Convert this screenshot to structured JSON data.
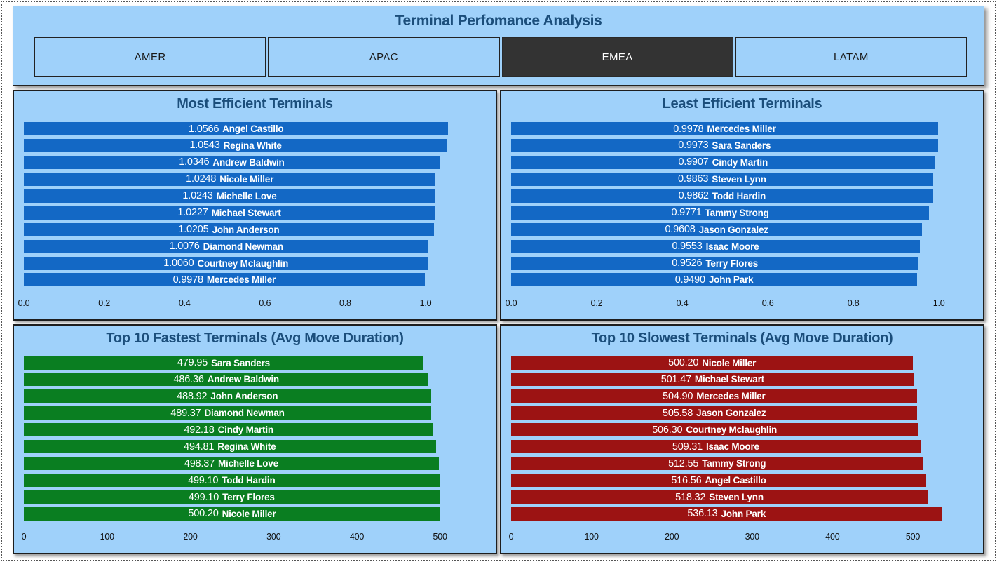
{
  "header": {
    "title": "Terminal Perfomance Analysis",
    "tabs": [
      {
        "label": "AMER",
        "selected": false
      },
      {
        "label": "APAC",
        "selected": false
      },
      {
        "label": "EMEA",
        "selected": true
      },
      {
        "label": "LATAM",
        "selected": false
      }
    ]
  },
  "colors": {
    "panel_background": "#9FD1FA",
    "title_text": "#1B4E7B",
    "selected_tab_background": "#333333",
    "selected_tab_text": "#FFFFFF",
    "tab_text": "#1A1A1A",
    "bar_label_text": "#FFFFFF",
    "axis_text": "#111111",
    "blue_bar": "#1368C5",
    "green_bar": "#0A7E21",
    "red_bar": "#9C1313"
  },
  "chart_data": [
    {
      "type": "bar",
      "orientation": "horizontal",
      "title": "Most Efficient Terminals",
      "bar_color": "#1368C5",
      "categories": [
        "Angel Castillo",
        "Regina White",
        "Andrew Baldwin",
        "Nicole Miller",
        "Michelle Love",
        "Michael Stewart",
        "John Anderson",
        "Diamond Newman",
        "Courtney Mclaughlin",
        "Mercedes Miller"
      ],
      "values": [
        1.0566,
        1.0543,
        1.0346,
        1.0248,
        1.0243,
        1.0227,
        1.0205,
        1.0076,
        1.006,
        0.9978
      ],
      "value_labels": [
        "1.0566",
        "1.0543",
        "1.0346",
        "1.0248",
        "1.0243",
        "1.0227",
        "1.0205",
        "1.0076",
        "1.0060",
        "0.9978"
      ],
      "x_ticks": {
        "values": [
          0,
          0.2,
          0.4,
          0.6,
          0.8,
          1.0
        ],
        "labels": [
          "0.0",
          "0.2",
          "0.4",
          "0.6",
          "0.8",
          "1.0"
        ]
      },
      "xlim": [
        0,
        1.15
      ],
      "grid": false,
      "legend": "none",
      "data_labels": "inside-center"
    },
    {
      "type": "bar",
      "orientation": "horizontal",
      "title": "Least Efficient Terminals",
      "bar_color": "#1368C5",
      "categories": [
        "Mercedes Miller",
        "Sara Sanders",
        "Cindy Martin",
        "Steven Lynn",
        "Todd Hardin",
        "Tammy Strong",
        "Jason Gonzalez",
        "Isaac Moore",
        "Terry Flores",
        "John Park"
      ],
      "values": [
        0.9978,
        0.9973,
        0.9907,
        0.9863,
        0.9862,
        0.9771,
        0.9608,
        0.9553,
        0.9526,
        0.949
      ],
      "value_labels": [
        "0.9978",
        "0.9973",
        "0.9907",
        "0.9863",
        "0.9862",
        "0.9771",
        "0.9608",
        "0.9553",
        "0.9526",
        "0.9490"
      ],
      "x_ticks": {
        "values": [
          0,
          0.2,
          0.4,
          0.6,
          0.8,
          1.0
        ],
        "labels": [
          "0.0",
          "0.2",
          "0.4",
          "0.6",
          "0.8",
          "1.0"
        ]
      },
      "xlim": [
        0,
        1.08
      ],
      "grid": false,
      "legend": "none",
      "data_labels": "inside-center"
    },
    {
      "type": "bar",
      "orientation": "horizontal",
      "title": "Top 10 Fastest Terminals (Avg Move Duration)",
      "bar_color": "#0A7E21",
      "categories": [
        "Sara Sanders",
        "Andrew Baldwin",
        "John Anderson",
        "Diamond Newman",
        "Cindy Martin",
        "Regina White",
        "Michelle Love",
        "Todd Hardin",
        "Terry Flores",
        "Nicole Miller"
      ],
      "values": [
        479.95,
        486.36,
        488.92,
        489.37,
        492.18,
        494.81,
        498.37,
        499.1,
        499.1,
        500.2
      ],
      "value_labels": [
        "479.95",
        "486.36",
        "488.92",
        "489.37",
        "492.18",
        "494.81",
        "498.37",
        "499.10",
        "499.10",
        "500.20"
      ],
      "x_ticks": {
        "values": [
          0,
          100,
          200,
          300,
          400,
          500
        ],
        "labels": [
          "0",
          "100",
          "200",
          "300",
          "400",
          "500"
        ]
      },
      "xlim": [
        0,
        555
      ],
      "grid": false,
      "legend": "none",
      "data_labels": "inside-center"
    },
    {
      "type": "bar",
      "orientation": "horizontal",
      "title": "Top 10 Slowest Terminals (Avg Move Duration)",
      "bar_color": "#9C1313",
      "categories": [
        "Nicole Miller",
        "Michael Stewart",
        "Mercedes Miller",
        "Jason Gonzalez",
        "Courtney Mclaughlin",
        "Isaac Moore",
        "Tammy Strong",
        "Angel Castillo",
        "Steven Lynn",
        "John Park"
      ],
      "values": [
        500.2,
        501.47,
        504.9,
        505.58,
        506.3,
        509.31,
        512.55,
        516.56,
        518.32,
        536.13
      ],
      "value_labels": [
        "500.20",
        "501.47",
        "504.90",
        "505.58",
        "506.30",
        "509.31",
        "512.55",
        "516.56",
        "518.32",
        "536.13"
      ],
      "x_ticks": {
        "values": [
          0,
          100,
          200,
          300,
          400,
          500
        ],
        "labels": [
          "0",
          "100",
          "200",
          "300",
          "400",
          "500"
        ]
      },
      "xlim": [
        0,
        575
      ],
      "grid": false,
      "legend": "none",
      "data_labels": "inside-center"
    }
  ]
}
